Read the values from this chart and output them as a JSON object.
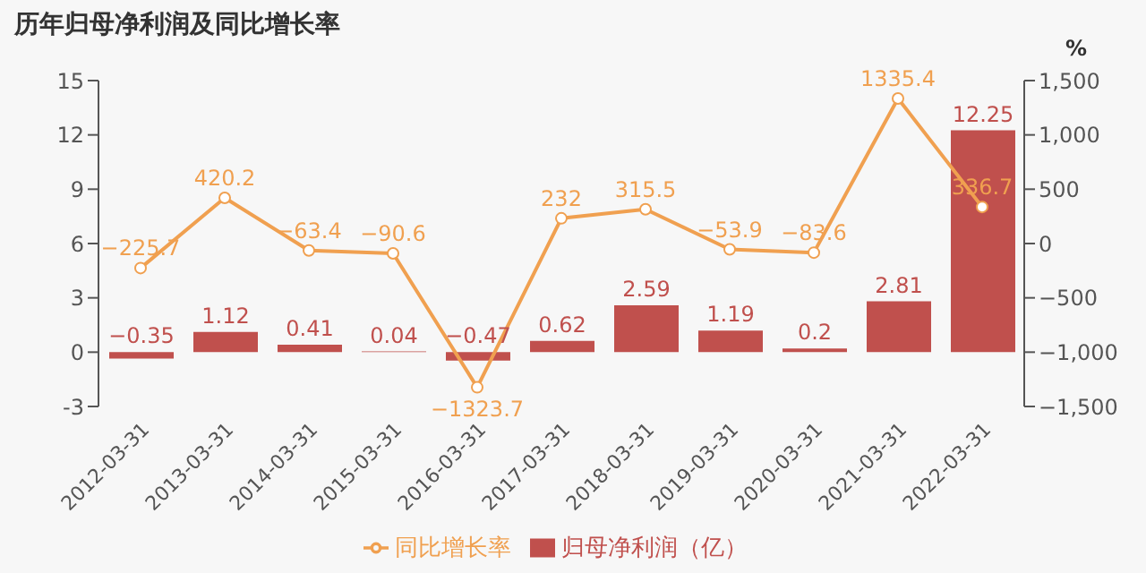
{
  "chart_data": {
    "type": "bar",
    "title": "历年归母净利润及同比增长率",
    "y2label": "%",
    "categories": [
      "2012-03-31",
      "2013-03-31",
      "2014-03-31",
      "2015-03-31",
      "2016-03-31",
      "2017-03-31",
      "2018-03-31",
      "2019-03-31",
      "2020-03-31",
      "2021-03-31",
      "2022-03-31"
    ],
    "series": [
      {
        "name": "归母净利润（亿）",
        "color": "#c0504d",
        "values": [
          -0.35,
          1.12,
          0.41,
          0.04,
          -0.47,
          0.62,
          2.59,
          1.19,
          0.2,
          2.81,
          12.25
        ]
      },
      {
        "name": "同比增长率",
        "type": "line",
        "axis": "y2",
        "color": "#f0a050",
        "values": [
          -225.7,
          420.2,
          -63.4,
          -90.6,
          -1323.7,
          232,
          315.5,
          -53.9,
          -83.6,
          1335.4,
          336.7
        ]
      }
    ],
    "ylim": [
      -3,
      15
    ],
    "yticks": [
      -3,
      0,
      3,
      6,
      9,
      12,
      15
    ],
    "y2lim": [
      -1500,
      1500
    ],
    "y2ticks": [
      {
        "value": -1500,
        "label": "−1,500"
      },
      {
        "value": -1000,
        "label": "−1,000"
      },
      {
        "value": -500,
        "label": "−500"
      },
      0,
      {
        "value": 500,
        "label": "500"
      },
      {
        "value": 1000,
        "label": "1,000"
      },
      {
        "value": 1500,
        "label": "1,500"
      }
    ],
    "data_labels": true,
    "legend": "bottom",
    "marker": "circle",
    "grid": false
  }
}
